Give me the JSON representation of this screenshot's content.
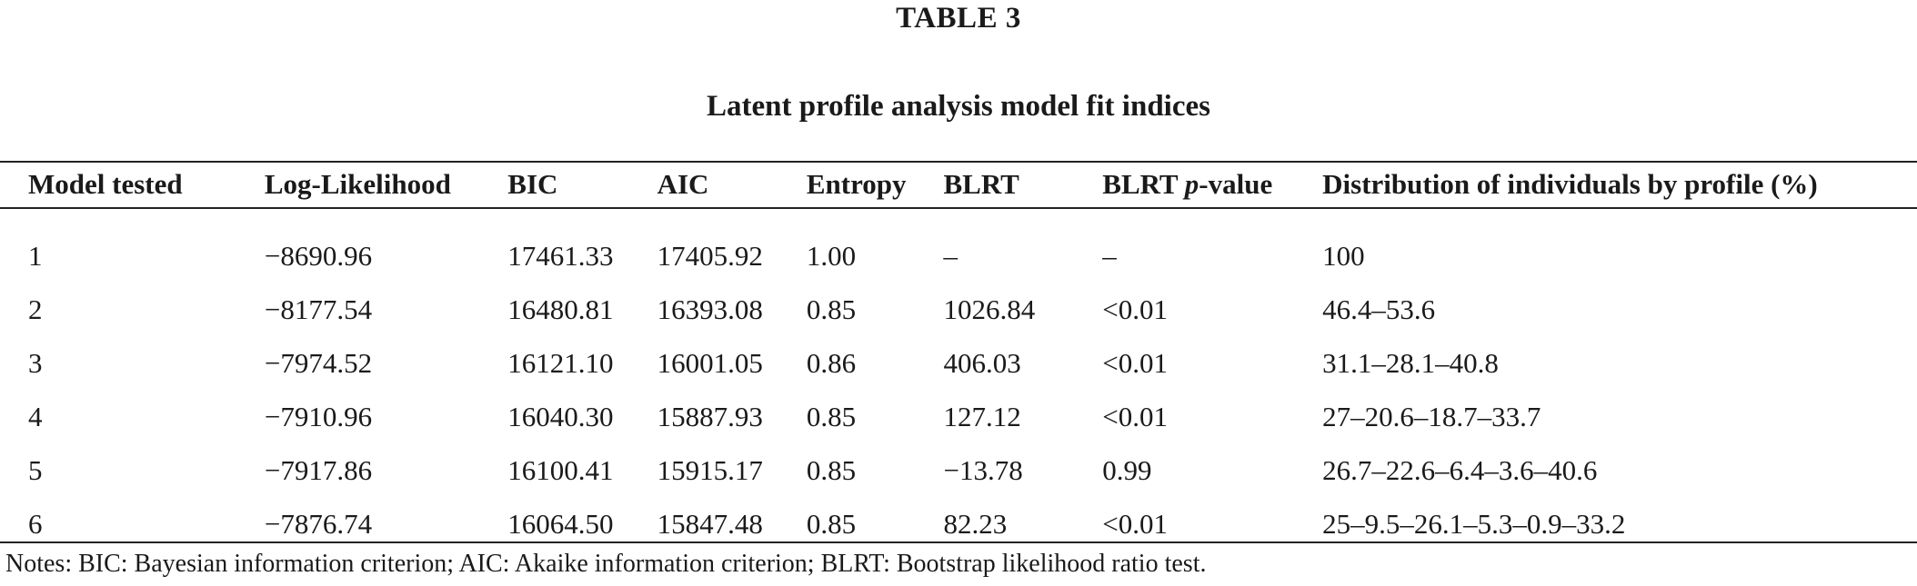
{
  "table_label": "TABLE 3",
  "caption": "Latent profile analysis model fit indices",
  "columns": [
    "Model tested",
    "Log-Likelihood",
    "BIC",
    "AIC",
    "Entropy",
    "BLRT",
    "BLRT ",
    "Distribution of individuals by profile (%)"
  ],
  "blrt_p_italic": "p",
  "blrt_p_suffix": "-value",
  "rows": [
    [
      "1",
      "−8690.96",
      "17461.33",
      "17405.92",
      "1.00",
      "–",
      "–",
      "100"
    ],
    [
      "2",
      "−8177.54",
      "16480.81",
      "16393.08",
      "0.85",
      "1026.84",
      "<0.01",
      "46.4–53.6"
    ],
    [
      "3",
      "−7974.52",
      "16121.10",
      "16001.05",
      "0.86",
      "406.03",
      "<0.01",
      "31.1–28.1–40.8"
    ],
    [
      "4",
      "−7910.96",
      "16040.30",
      "15887.93",
      "0.85",
      "127.12",
      "<0.01",
      "27–20.6–18.7–33.7"
    ],
    [
      "5",
      "−7917.86",
      "16100.41",
      "15915.17",
      "0.85",
      "−13.78",
      "0.99",
      "26.7–22.6–6.4–3.6–40.6"
    ],
    [
      "6",
      "−7876.74",
      "16064.50",
      "15847.48",
      "0.85",
      "82.23",
      "<0.01",
      "25–9.5–26.1–5.3–0.9–33.2"
    ]
  ],
  "notes": "Notes: BIC: Bayesian information criterion; AIC: Akaike information criterion; BLRT: Bootstrap likelihood ratio test."
}
